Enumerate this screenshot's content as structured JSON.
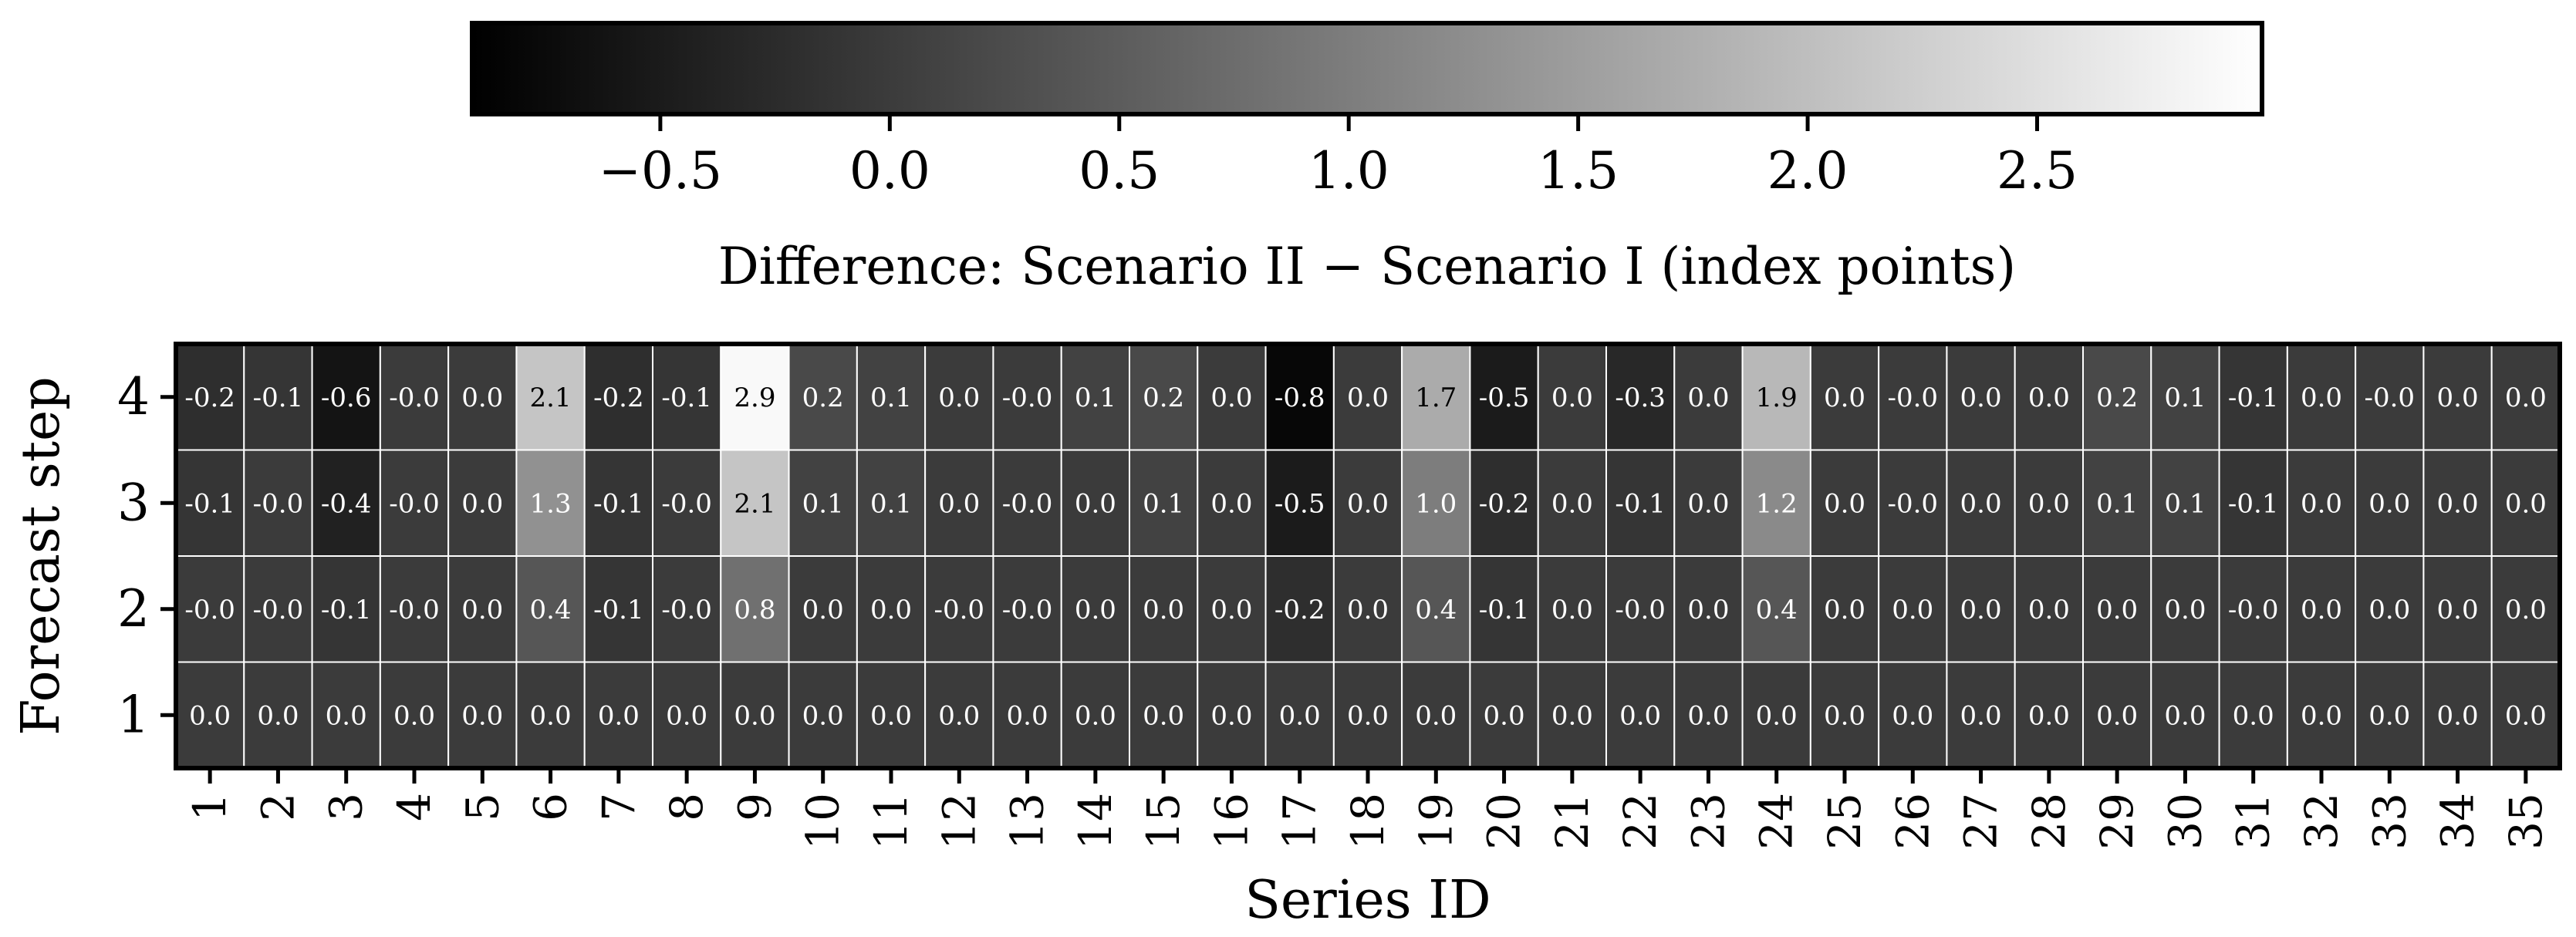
{
  "chart_data": {
    "type": "heatmap",
    "xlabel": "Series ID",
    "ylabel": "Forecast step",
    "x": [
      "1",
      "2",
      "3",
      "4",
      "5",
      "6",
      "7",
      "8",
      "9",
      "10",
      "11",
      "12",
      "13",
      "14",
      "15",
      "16",
      "17",
      "18",
      "19",
      "20",
      "21",
      "22",
      "23",
      "24",
      "25",
      "26",
      "27",
      "28",
      "29",
      "30",
      "31",
      "32",
      "33",
      "34",
      "35"
    ],
    "y": [
      "4",
      "3",
      "2",
      "1"
    ],
    "values": [
      [
        -0.2,
        -0.1,
        -0.6,
        -0.0,
        0.0,
        2.1,
        -0.2,
        -0.1,
        2.9,
        0.2,
        0.1,
        0.0,
        -0.0,
        0.1,
        0.2,
        0.0,
        -0.8,
        0.0,
        1.7,
        -0.5,
        0.0,
        -0.3,
        0.0,
        1.9,
        0.0,
        -0.0,
        0.0,
        0.0,
        0.2,
        0.1,
        -0.1,
        0.0,
        -0.0,
        0.0,
        0.0
      ],
      [
        -0.1,
        -0.0,
        -0.4,
        -0.0,
        0.0,
        1.3,
        -0.1,
        -0.0,
        2.1,
        0.1,
        0.1,
        0.0,
        -0.0,
        0.0,
        0.1,
        0.0,
        -0.5,
        0.0,
        1.0,
        -0.2,
        0.0,
        -0.1,
        0.0,
        1.2,
        0.0,
        -0.0,
        0.0,
        0.0,
        0.1,
        0.1,
        -0.1,
        0.0,
        0.0,
        0.0,
        0.0
      ],
      [
        -0.0,
        -0.0,
        -0.1,
        -0.0,
        0.0,
        0.4,
        -0.1,
        -0.0,
        0.8,
        0.0,
        0.0,
        -0.0,
        -0.0,
        0.0,
        0.0,
        0.0,
        -0.2,
        0.0,
        0.4,
        -0.1,
        0.0,
        -0.0,
        0.0,
        0.4,
        0.0,
        0.0,
        0.0,
        0.0,
        0.0,
        0.0,
        -0.0,
        0.0,
        0.0,
        0.0,
        0.0
      ],
      [
        0.0,
        0.0,
        0.0,
        0.0,
        0.0,
        0.0,
        0.0,
        0.0,
        0.0,
        0.0,
        0.0,
        0.0,
        0.0,
        0.0,
        0.0,
        0.0,
        0.0,
        0.0,
        0.0,
        0.0,
        0.0,
        0.0,
        0.0,
        0.0,
        0.0,
        0.0,
        0.0,
        0.0,
        0.0,
        0.0,
        0.0,
        0.0,
        0.0,
        0.0,
        0.0
      ]
    ],
    "cell_labels": [
      [
        "-0.2",
        "-0.1",
        "-0.6",
        "-0.0",
        "0.0",
        "2.1",
        "-0.2",
        "-0.1",
        "2.9",
        "0.2",
        "0.1",
        "0.0",
        "-0.0",
        "0.1",
        "0.2",
        "0.0",
        "-0.8",
        "0.0",
        "1.7",
        "-0.5",
        "0.0",
        "-0.3",
        "0.0",
        "1.9",
        "0.0",
        "-0.0",
        "0.0",
        "0.0",
        "0.2",
        "0.1",
        "-0.1",
        "0.0",
        "-0.0",
        "0.0",
        "0.0"
      ],
      [
        "-0.1",
        "-0.0",
        "-0.4",
        "-0.0",
        "0.0",
        "1.3",
        "-0.1",
        "-0.0",
        "2.1",
        "0.1",
        "0.1",
        "0.0",
        "-0.0",
        "0.0",
        "0.1",
        "0.0",
        "-0.5",
        "0.0",
        "1.0",
        "-0.2",
        "0.0",
        "-0.1",
        "0.0",
        "1.2",
        "0.0",
        "-0.0",
        "0.0",
        "0.0",
        "0.1",
        "0.1",
        "-0.1",
        "0.0",
        "0.0",
        "0.0",
        "0.0"
      ],
      [
        "-0.0",
        "-0.0",
        "-0.1",
        "-0.0",
        "0.0",
        "0.4",
        "-0.1",
        "-0.0",
        "0.8",
        "0.0",
        "0.0",
        "-0.0",
        "-0.0",
        "0.0",
        "0.0",
        "0.0",
        "-0.2",
        "0.0",
        "0.4",
        "-0.1",
        "0.0",
        "-0.0",
        "0.0",
        "0.4",
        "0.0",
        "0.0",
        "0.0",
        "0.0",
        "0.0",
        "0.0",
        "-0.0",
        "0.0",
        "0.0",
        "0.0",
        "0.0"
      ],
      [
        "0.0",
        "0.0",
        "0.0",
        "0.0",
        "0.0",
        "0.0",
        "0.0",
        "0.0",
        "0.0",
        "0.0",
        "0.0",
        "0.0",
        "0.0",
        "0.0",
        "0.0",
        "0.0",
        "0.0",
        "0.0",
        "0.0",
        "0.0",
        "0.0",
        "0.0",
        "0.0",
        "0.0",
        "0.0",
        "0.0",
        "0.0",
        "0.0",
        "0.0",
        "0.0",
        "0.0",
        "0.0",
        "0.0",
        "0.0",
        "0.0"
      ]
    ],
    "colormap": "greys",
    "color_min": -0.91,
    "color_max": 2.99,
    "low_color": "#000000",
    "high_color": "#ffffff",
    "colorbar": {
      "placement": "top",
      "label": "Difference: Scenario II − Scenario I (index points)",
      "ticks": [
        -0.5,
        0.0,
        0.5,
        1.0,
        1.5,
        2.0,
        2.5
      ],
      "tick_labels": [
        "−0.5",
        "0.0",
        "0.5",
        "1.0",
        "1.5",
        "2.0",
        "2.5"
      ]
    },
    "grid": true
  }
}
